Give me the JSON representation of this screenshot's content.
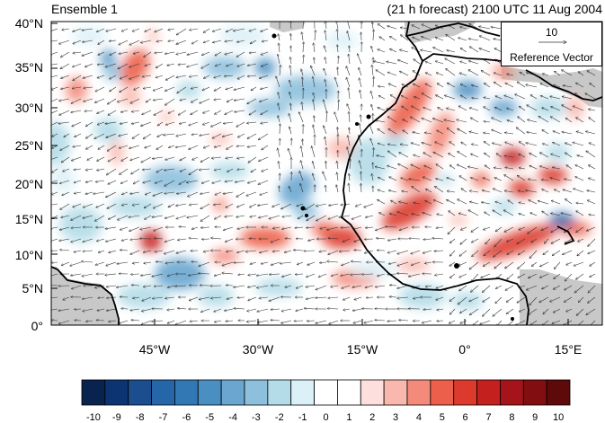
{
  "titles": {
    "left": "Ensemble 1",
    "right": "(21 h forecast) 2100 UTC 11 Aug 2004"
  },
  "axes": {
    "y_ticks": [
      "0°",
      "5°N",
      "10°N",
      "15°N",
      "20°N",
      "25°N",
      "30°N",
      "35°N",
      "40°N"
    ],
    "x_ticks": [
      "45°W",
      "30°W",
      "15°W",
      "0°",
      "15°E"
    ],
    "lat_range": [
      0,
      40
    ],
    "lon_range": [
      -60,
      20
    ]
  },
  "reference_vector": {
    "magnitude": "10",
    "label": "Reference Vector"
  },
  "colorbar": {
    "labels": [
      "-10",
      "-9",
      "-8",
      "-7",
      "-6",
      "-5",
      "-4",
      "-3",
      "-2",
      "-1",
      "0",
      "1",
      "2",
      "3",
      "4",
      "5",
      "6",
      "7",
      "8",
      "9",
      "10"
    ],
    "colors": [
      "#08234e",
      "#0d3472",
      "#1a4e8f",
      "#2566a8",
      "#3278b5",
      "#4a8fc2",
      "#6aa6cf",
      "#8dc0dd",
      "#b3dbe8",
      "#dcf1f7",
      "#ffffff",
      "#ffffff",
      "#fde0de",
      "#f9b8ae",
      "#f48b7a",
      "#ec5f4b",
      "#dc3a2c",
      "#c4201e",
      "#a4141a",
      "#830e12",
      "#5e0a0a"
    ]
  },
  "map": {
    "land_color": "#c8c8c8",
    "coast_color": "#000000"
  }
}
